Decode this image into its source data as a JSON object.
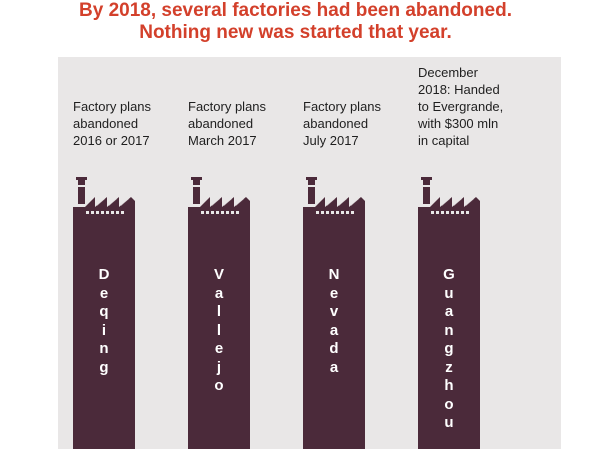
{
  "headline": {
    "line1": "By 2018, several factories had been abandoned.",
    "line2": "Nothing new was started that year."
  },
  "colors": {
    "headline": "#d3402b",
    "panel": "#e9e7e7",
    "tower": "#4b2a3a",
    "text": "#1f1f1f"
  },
  "factories": [
    {
      "caption_lines": [
        "Factory plans",
        "abandoned",
        "2016 or 2017"
      ],
      "city": "Deqing",
      "icon": "factory-icon"
    },
    {
      "caption_lines": [
        "Factory plans",
        "abandoned",
        "March 2017"
      ],
      "city": "Vallejo",
      "icon": "factory-icon"
    },
    {
      "caption_lines": [
        "Factory plans",
        "abandoned",
        "July 2017"
      ],
      "city": "Nevada",
      "icon": "factory-icon"
    },
    {
      "caption_lines": [
        "December",
        "2018: Handed",
        "to Evergrande,",
        "with $300 mln",
        "in capital"
      ],
      "city": "Guangzhou",
      "icon": "factory-icon"
    }
  ]
}
